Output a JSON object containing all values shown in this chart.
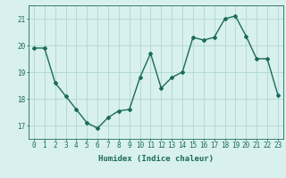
{
  "x": [
    0,
    1,
    2,
    3,
    4,
    5,
    6,
    7,
    8,
    9,
    10,
    11,
    12,
    13,
    14,
    15,
    16,
    17,
    18,
    19,
    20,
    21,
    22,
    23
  ],
  "y": [
    19.9,
    19.9,
    18.6,
    18.1,
    17.6,
    17.1,
    16.9,
    17.3,
    17.55,
    17.6,
    18.8,
    19.7,
    18.4,
    18.8,
    19.0,
    20.3,
    20.2,
    20.3,
    21.0,
    21.1,
    20.35,
    19.5,
    19.5,
    18.15
  ],
  "line_color": "#1a6b5a",
  "marker": "D",
  "marker_size": 2,
  "bg_color": "#d8f0ee",
  "grid_color": "#afd8d2",
  "tick_color": "#1a6b5a",
  "xlabel": "Humidex (Indice chaleur)",
  "ylim": [
    16.5,
    21.5
  ],
  "yticks": [
    17,
    18,
    19,
    20,
    21
  ],
  "xticks": [
    0,
    1,
    2,
    3,
    4,
    5,
    6,
    7,
    8,
    9,
    10,
    11,
    12,
    13,
    14,
    15,
    16,
    17,
    18,
    19,
    20,
    21,
    22,
    23
  ],
  "xlabel_fontsize": 6.5,
  "tick_fontsize": 5.5,
  "line_width": 1.0
}
